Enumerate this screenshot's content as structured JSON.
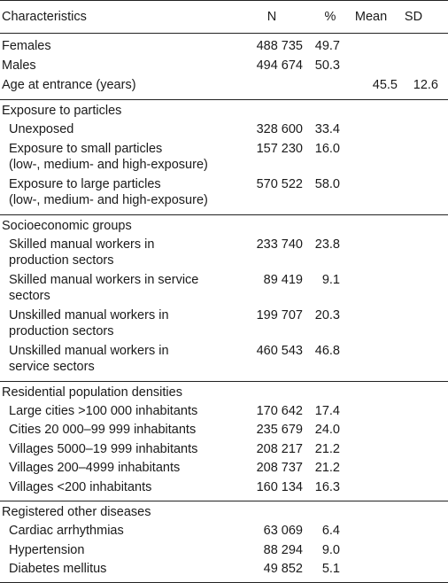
{
  "header": {
    "characteristics": "Characteristics",
    "n": "N",
    "pct": "%",
    "mean": "Mean",
    "sd": "SD"
  },
  "rows": [
    {
      "label": "Females",
      "n": "488 735",
      "pct": "49.7",
      "mean": "",
      "sd": ""
    },
    {
      "label": "Males",
      "n": "494 674",
      "pct": "50.3",
      "mean": "",
      "sd": ""
    },
    {
      "label": "Age at entrance (years)",
      "n": "",
      "pct": "",
      "mean": "45.5",
      "sd": "12.6"
    }
  ],
  "sections": [
    {
      "title": "Exposure to particles",
      "rows": [
        {
          "label1": "Unexposed",
          "label2": "",
          "n": "328 600",
          "pct": "33.4"
        },
        {
          "label1": "Exposure to small particles",
          "label2": "(low-, medium- and high-exposure)",
          "n": "157 230",
          "pct": "16.0"
        },
        {
          "label1": "Exposure to large particles",
          "label2": "(low-, medium- and high-exposure)",
          "n": "570 522",
          "pct": "58.0"
        }
      ]
    },
    {
      "title": "Socioeconomic  groups",
      "rows": [
        {
          "label1": "Skilled manual workers in",
          "label2": "production sectors",
          "n": "233 740",
          "pct": "23.8"
        },
        {
          "label1": "Skilled manual workers in service",
          "label2": "sectors",
          "n": "89 419",
          "pct": "9.1"
        },
        {
          "label1": "Unskilled manual workers in",
          "label2": "production sectors",
          "n": "199 707",
          "pct": "20.3"
        },
        {
          "label1": "Unskilled manual workers in",
          "label2": "service sectors",
          "n": "460 543",
          "pct": "46.8"
        }
      ]
    },
    {
      "title": "Residential population densities",
      "rows": [
        {
          "label1": "Large cities >100 000 inhabitants",
          "label2": "",
          "n": "170 642",
          "pct": "17.4"
        },
        {
          "label1": "Cities 20 000–99 999 inhabitants",
          "label2": "",
          "n": "235 679",
          "pct": "24.0"
        },
        {
          "label1": "Villages 5000–19 999 inhabitants",
          "label2": "",
          "n": "208 217",
          "pct": "21.2"
        },
        {
          "label1": "Villages 200–4999 inhabitants",
          "label2": "",
          "n": "208 737",
          "pct": "21.2"
        },
        {
          "label1": "Villages <200 inhabitants",
          "label2": "",
          "n": "160 134",
          "pct": "16.3"
        }
      ]
    },
    {
      "title": "Registered other diseases",
      "rows": [
        {
          "label1": "Cardiac arrhythmias",
          "label2": "",
          "n": "63 069",
          "pct": "6.4"
        },
        {
          "label1": "Hypertension",
          "label2": "",
          "n": "88 294",
          "pct": "9.0"
        },
        {
          "label1": "Diabetes mellitus",
          "label2": "",
          "n": "49 852",
          "pct": "5.1"
        }
      ]
    }
  ]
}
